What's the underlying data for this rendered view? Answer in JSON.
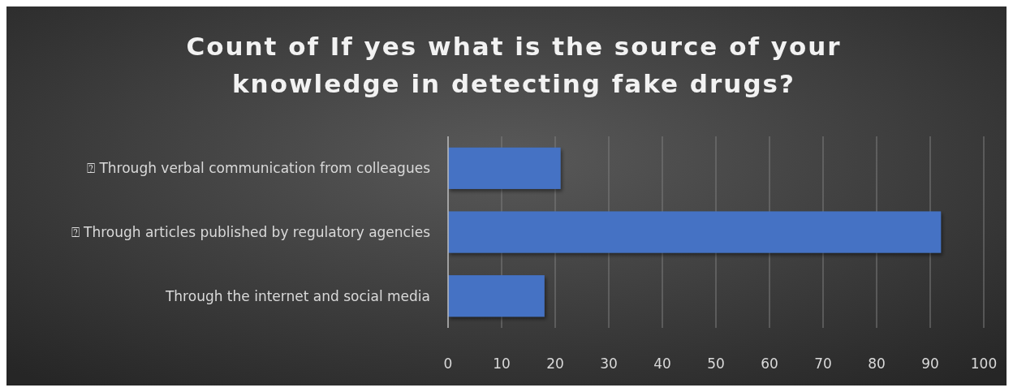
{
  "chart_data": {
    "type": "bar",
    "orientation": "horizontal",
    "title": "Count of If yes what is the source of your knowledge in detecting fake drugs?",
    "categories": [
      "⍰ Through verbal communication from colleagues",
      "⍰ Through articles published by regulatory agencies",
      "Through the internet and social media"
    ],
    "values": [
      21,
      92,
      18
    ],
    "color": "#4472c4",
    "xlim": [
      0,
      100
    ],
    "xticks": [
      0,
      10,
      20,
      30,
      40,
      50,
      60,
      70,
      80,
      90,
      100
    ],
    "grid": "x"
  }
}
